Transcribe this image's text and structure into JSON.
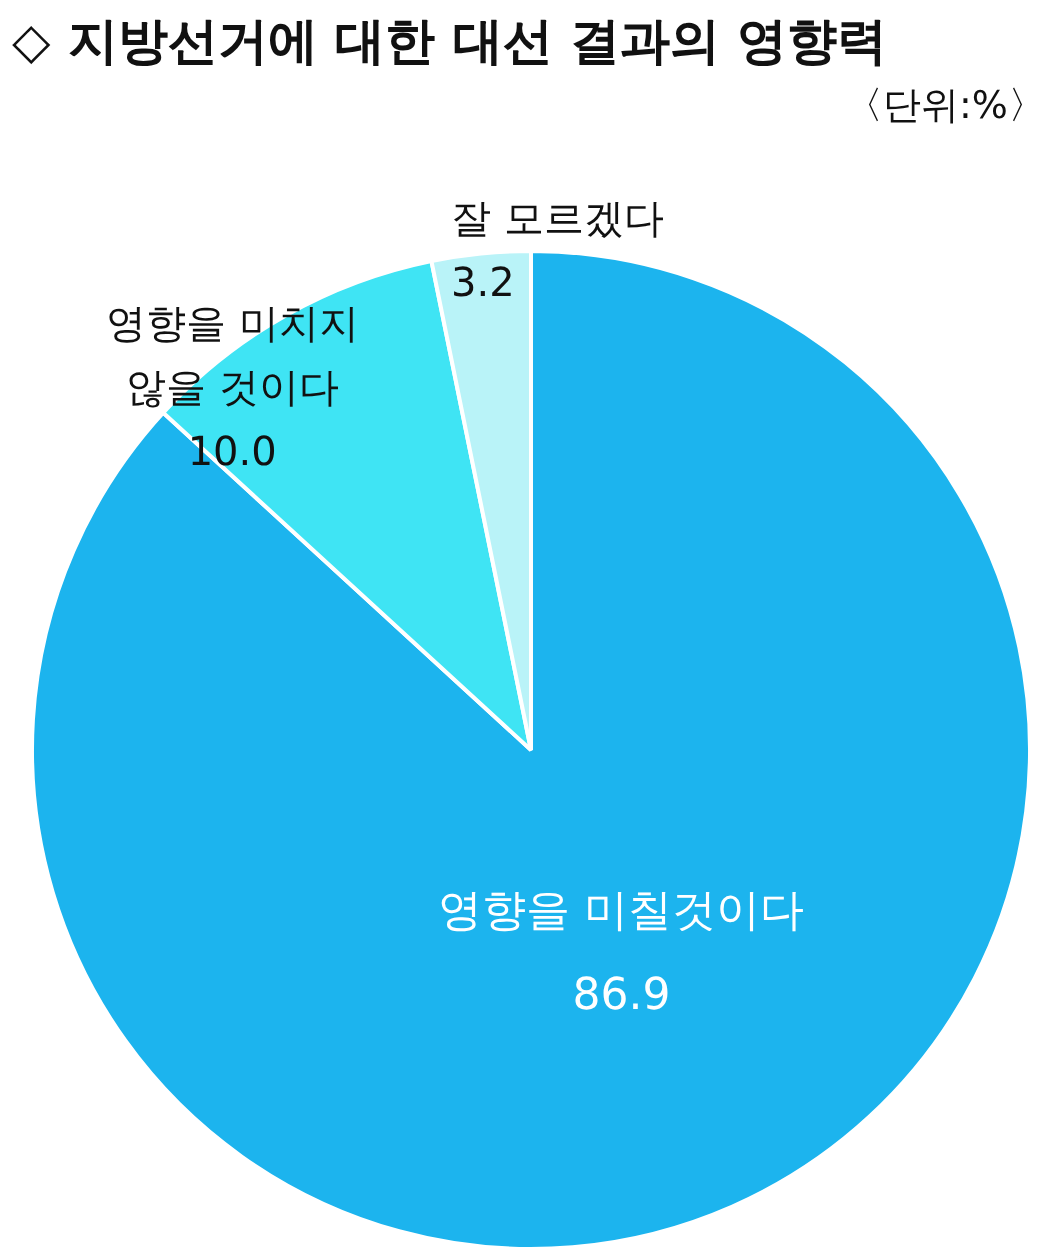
{
  "chart_data": {
    "type": "pie",
    "title": "◇ 지방선거에 대한 대선 결과의 영향력",
    "annotations": [
      "〈단위:%〉"
    ],
    "categories": [
      "영향을 미칠것이다",
      "영향을 미치지 않을 것이다",
      "잘 모르겠다"
    ],
    "values": [
      86.9,
      10.0,
      3.2
    ],
    "value_labels": [
      "86.9",
      "10.0",
      "3.2"
    ],
    "colors": [
      "#1cb4ee",
      "#3fe4f4",
      "#b9f3f8"
    ],
    "data_labels": true,
    "legend": false
  }
}
